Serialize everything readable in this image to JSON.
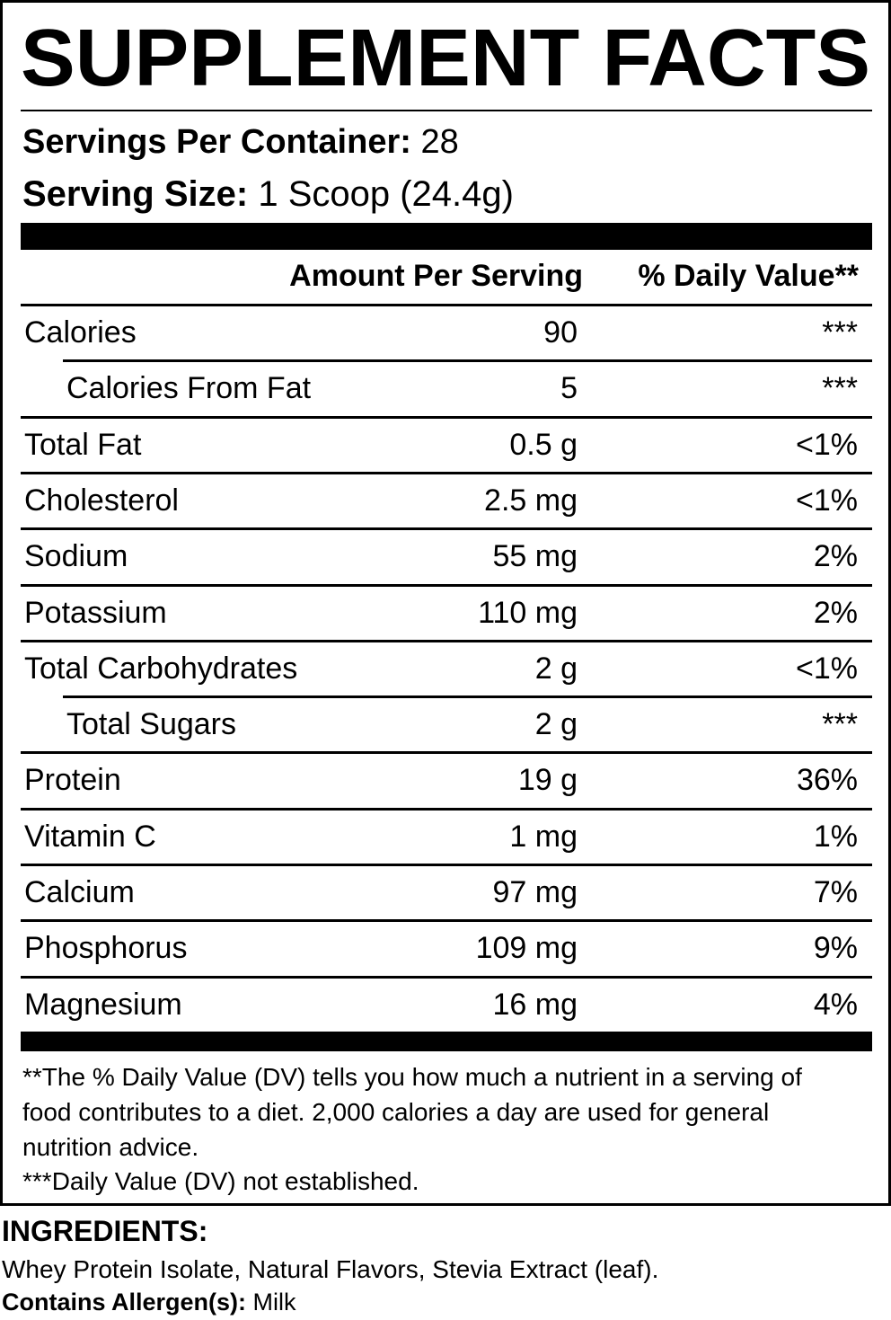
{
  "title": "SUPPLEMENT FACTS",
  "servings": {
    "label": "Servings Per Container:",
    "value": "28"
  },
  "serving_size": {
    "label": "Serving Size:",
    "value": "1 Scoop (24.4g)"
  },
  "table": {
    "headers": [
      "Amount Per Serving",
      "% Daily Value**"
    ],
    "rows": [
      {
        "name": "Calories",
        "amount": "90",
        "dv": "***",
        "indent": false
      },
      {
        "name": "Calories From Fat",
        "amount": "5",
        "dv": "***",
        "indent": true
      },
      {
        "name": "Total Fat",
        "amount": "0.5 g",
        "dv": "<1%",
        "indent": false
      },
      {
        "name": "Cholesterol",
        "amount": "2.5 mg",
        "dv": "<1%",
        "indent": false
      },
      {
        "name": "Sodium",
        "amount": "55 mg",
        "dv": "2%",
        "indent": false
      },
      {
        "name": "Potassium",
        "amount": "110 mg",
        "dv": "2%",
        "indent": false
      },
      {
        "name": "Total Carbohydrates",
        "amount": "2 g",
        "dv": "<1%",
        "indent": false
      },
      {
        "name": "Total Sugars",
        "amount": "2 g",
        "dv": "***",
        "indent": true
      },
      {
        "name": "Protein",
        "amount": "19 g",
        "dv": "36%",
        "indent": false
      },
      {
        "name": "Vitamin C",
        "amount": "1 mg",
        "dv": "1%",
        "indent": false
      },
      {
        "name": "Calcium",
        "amount": "97 mg",
        "dv": "7%",
        "indent": false
      },
      {
        "name": "Phosphorus",
        "amount": "109 mg",
        "dv": "9%",
        "indent": false
      },
      {
        "name": "Magnesium",
        "amount": "16 mg",
        "dv": "4%",
        "indent": false
      }
    ]
  },
  "footnotes": [
    "**The % Daily Value (DV) tells you how much a nutrient in a serving of food contributes to a diet. 2,000 calories a day are used for general nutrition advice.",
    "***Daily Value (DV) not established."
  ],
  "ingredients": {
    "heading": "INGREDIENTS:",
    "text": "Whey Protein Isolate, Natural Flavors, Stevia Extract (leaf).",
    "allergen_label": "Contains Allergen(s):",
    "allergen_value": "Milk"
  }
}
